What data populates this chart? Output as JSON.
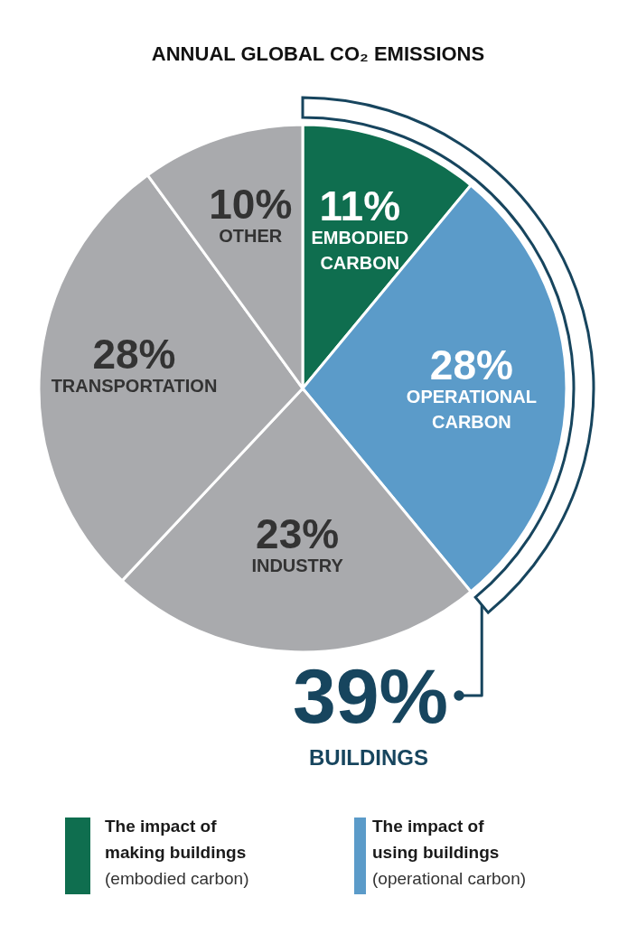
{
  "chart_data": {
    "type": "pie",
    "title": "ANNUAL GLOBAL CO₂ EMISSIONS",
    "categories": [
      "EMBODIED CARBON",
      "OPERATIONAL CARBON",
      "INDUSTRY",
      "TRANSPORTATION",
      "OTHER"
    ],
    "values": [
      11,
      28,
      23,
      28,
      10
    ],
    "value_labels": [
      "11%",
      "28%",
      "23%",
      "28%",
      "10%"
    ],
    "colors": [
      "#0f6e4f",
      "#5b9bc9",
      "#a9aaad",
      "#a9aaad",
      "#a9aaad"
    ],
    "annotations": [
      "39%",
      "BUILDINGS",
      "The impact of\nmaking buildings",
      "(embodied carbon)",
      "The impact of\nusing buildings",
      "(operational carbon)"
    ]
  }
}
